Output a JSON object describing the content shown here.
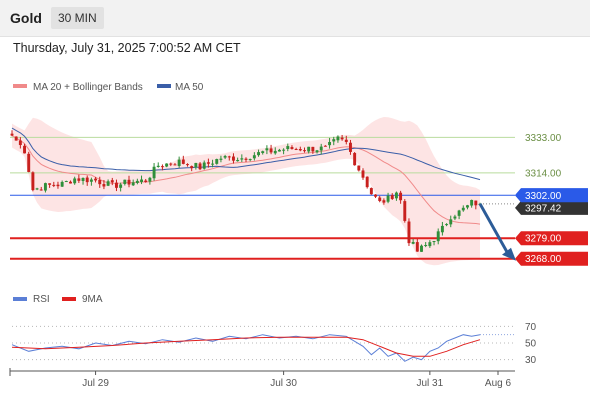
{
  "header": {
    "symbol": "Gold",
    "interval": "30 MIN",
    "datetime": "Thursday, July 31, 2025 7:00:52 AM CET"
  },
  "colors": {
    "bollinger_fill": "#fde3e3",
    "ma20": "#f08a8a",
    "ma50": "#3a5ea8",
    "resistance": "#b9dc9e",
    "support": "#e0201f",
    "current_price_line": "#2a5ae8",
    "arrow": "#2c5c98",
    "rsi": "#5b7fd6",
    "rsi_ma": "#e0201f",
    "candle_up": "#2f8f3a",
    "candle_down": "#c8201e"
  },
  "chart_data": [
    {
      "type": "candlestick",
      "legend": [
        {
          "name": "MA 20 + Bollinger Bands",
          "color": "#f08a8a"
        },
        {
          "name": "MA 50",
          "color": "#3a5ea8"
        }
      ],
      "x_ticks": [
        "Jul 29",
        "Jul 30",
        "Jul 31",
        "Aug 6"
      ],
      "ylim": [
        3255,
        3345
      ],
      "levels": [
        {
          "label": "3333.00",
          "value": 3333.0,
          "kind": "resistance"
        },
        {
          "label": "3314.00",
          "value": 3314.0,
          "kind": "resistance"
        },
        {
          "label": "3302.00",
          "value": 3302.0,
          "kind": "pivot"
        },
        {
          "label": "3279.00",
          "value": 3279.0,
          "kind": "support"
        },
        {
          "label": "3268.00",
          "value": 3268.0,
          "kind": "support"
        }
      ],
      "last_price_label": "3297.42",
      "last_price": 3297.42,
      "close_path": [
        [
          0,
          3334
        ],
        [
          3,
          3326
        ],
        [
          5,
          3305
        ],
        [
          8,
          3307
        ],
        [
          12,
          3308
        ],
        [
          15,
          3311
        ],
        [
          20,
          3310
        ],
        [
          24,
          3307
        ],
        [
          28,
          3309
        ],
        [
          32,
          3310
        ],
        [
          35,
          3318
        ],
        [
          40,
          3320
        ],
        [
          45,
          3317
        ],
        [
          50,
          3322
        ],
        [
          55,
          3322
        ],
        [
          60,
          3325
        ],
        [
          63,
          3326
        ],
        [
          66,
          3327
        ],
        [
          70,
          3327
        ],
        [
          75,
          3327
        ],
        [
          78,
          3332
        ],
        [
          80,
          3330
        ],
        [
          82,
          3320
        ],
        [
          84,
          3312
        ],
        [
          86,
          3303
        ],
        [
          88,
          3298
        ],
        [
          90,
          3300
        ],
        [
          92,
          3304
        ],
        [
          93,
          3299
        ],
        [
          95,
          3278
        ],
        [
          97,
          3272
        ],
        [
          99,
          3275
        ],
        [
          101,
          3279
        ],
        [
          103,
          3284
        ],
        [
          105,
          3291
        ],
        [
          107,
          3293
        ],
        [
          109,
          3296
        ],
        [
          110,
          3298
        ],
        [
          112,
          3297.42
        ]
      ],
      "projection": {
        "from": 3297.42,
        "to": 3268
      }
    },
    {
      "type": "line",
      "legend": [
        {
          "name": "RSI",
          "color": "#5b7fd6"
        },
        {
          "name": "9MA",
          "color": "#e0201f"
        }
      ],
      "y_ticks": [
        70,
        50,
        30
      ],
      "ylim": [
        20,
        80
      ],
      "series": [
        {
          "name": "RSI",
          "values": [
            [
              0,
              48
            ],
            [
              4,
              40
            ],
            [
              8,
              44
            ],
            [
              12,
              46
            ],
            [
              16,
              43
            ],
            [
              20,
              50
            ],
            [
              24,
              47
            ],
            [
              28,
              52
            ],
            [
              32,
              49
            ],
            [
              36,
              54
            ],
            [
              40,
              51
            ],
            [
              44,
              56
            ],
            [
              48,
              52
            ],
            [
              52,
              58
            ],
            [
              56,
              55
            ],
            [
              60,
              60
            ],
            [
              64,
              56
            ],
            [
              68,
              58
            ],
            [
              72,
              55
            ],
            [
              76,
              60
            ],
            [
              80,
              58
            ],
            [
              84,
              46
            ],
            [
              86,
              36
            ],
            [
              88,
              44
            ],
            [
              90,
              34
            ],
            [
              92,
              38
            ],
            [
              94,
              28
            ],
            [
              96,
              33
            ],
            [
              98,
              30
            ],
            [
              100,
              40
            ],
            [
              102,
              44
            ],
            [
              104,
              52
            ],
            [
              106,
              56
            ],
            [
              108,
              60
            ],
            [
              110,
              58
            ],
            [
              112,
              60
            ]
          ]
        },
        {
          "name": "9MA",
          "values": [
            [
              0,
              45
            ],
            [
              8,
              43
            ],
            [
              16,
              45
            ],
            [
              24,
              47
            ],
            [
              32,
              50
            ],
            [
              40,
              52
            ],
            [
              48,
              54
            ],
            [
              56,
              56
            ],
            [
              64,
              57
            ],
            [
              72,
              57
            ],
            [
              80,
              57
            ],
            [
              84,
              54
            ],
            [
              88,
              46
            ],
            [
              92,
              38
            ],
            [
              96,
              34
            ],
            [
              100,
              34
            ],
            [
              104,
              40
            ],
            [
              108,
              48
            ],
            [
              112,
              54
            ]
          ]
        }
      ]
    }
  ]
}
